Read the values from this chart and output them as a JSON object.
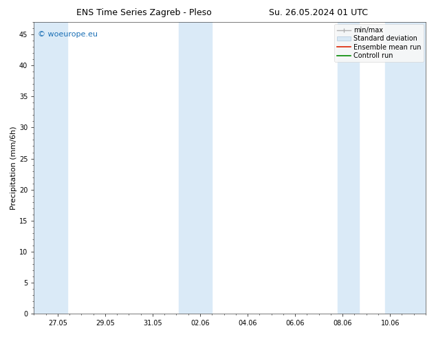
{
  "title_left": "ENS Time Series Zagreb - Pleso",
  "title_right": "Su. 26.05.2024 01 UTC",
  "ylabel": "Precipitation (mm/6h)",
  "background_color": "#ffffff",
  "plot_bg_color": "#ffffff",
  "ylim": [
    0,
    47
  ],
  "yticks": [
    0,
    5,
    10,
    15,
    20,
    25,
    30,
    35,
    40,
    45
  ],
  "xtick_labels": [
    "27.05",
    "29.05",
    "31.05",
    "02.06",
    "04.06",
    "06.06",
    "08.06",
    "10.06"
  ],
  "xtick_positions": [
    1,
    3,
    5,
    7,
    9,
    11,
    13,
    15
  ],
  "xlim": [
    0.0,
    16.5
  ],
  "shaded_band_color": "#daeaf7",
  "watermark": "© woeurope.eu",
  "watermark_color": "#1a6fb5",
  "legend_labels": [
    "min/max",
    "Standard deviation",
    "Ensemble mean run",
    "Controll run"
  ],
  "shaded_regions": [
    [
      0.0,
      1.4
    ],
    [
      6.1,
      7.5
    ],
    [
      12.8,
      13.7
    ],
    [
      14.8,
      16.5
    ]
  ],
  "title_fontsize": 9,
  "ylabel_fontsize": 8,
  "tick_fontsize": 7,
  "legend_fontsize": 7,
  "watermark_fontsize": 8
}
